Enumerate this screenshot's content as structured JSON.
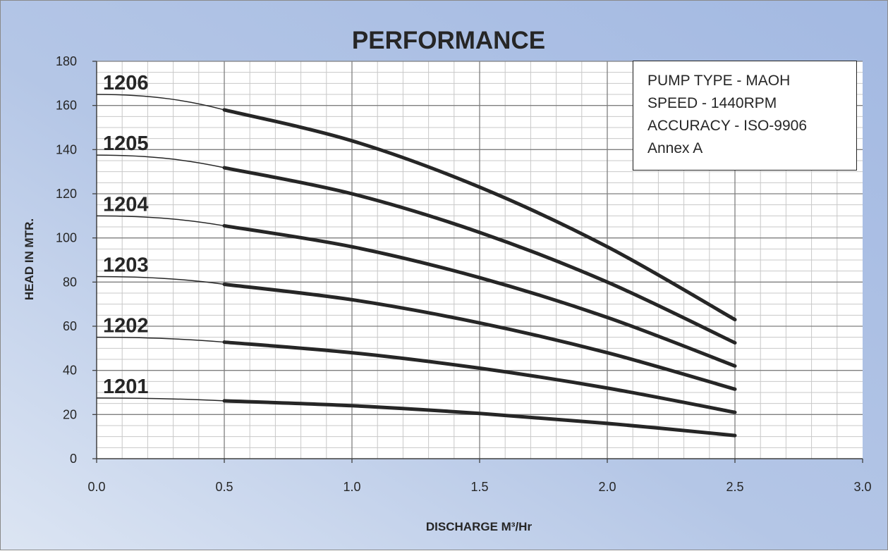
{
  "chart_data": {
    "type": "line",
    "title": "PERFORMANCE",
    "xlabel": "DISCHARGE M³/Hr",
    "ylabel": "HEAD IN MTR.",
    "xlim": [
      0,
      3
    ],
    "ylim": [
      0,
      180
    ],
    "x_ticks": [
      "0.0",
      "0.5",
      "1.0",
      "1.5",
      "2.0",
      "2.5",
      "3.0"
    ],
    "y_ticks": [
      "0",
      "20",
      "40",
      "60",
      "80",
      "100",
      "120",
      "140",
      "160",
      "180"
    ],
    "grid": true,
    "line_color": "#262626",
    "x": [
      0.5,
      1.0,
      1.5,
      2.0,
      2.5
    ],
    "series": [
      {
        "name": "1201",
        "shutoff": 27.5,
        "values": [
          26.2,
          24.0,
          20.5,
          16.0,
          10.5
        ]
      },
      {
        "name": "1202",
        "shutoff": 55.0,
        "values": [
          52.8,
          48.0,
          41.0,
          32.0,
          21.0
        ]
      },
      {
        "name": "1203",
        "shutoff": 82.5,
        "values": [
          79.0,
          72.0,
          61.5,
          48.0,
          31.5
        ]
      },
      {
        "name": "1204",
        "shutoff": 110.0,
        "values": [
          105.5,
          96.0,
          82.0,
          64.0,
          42.0
        ]
      },
      {
        "name": "1205",
        "shutoff": 137.5,
        "values": [
          131.8,
          120.0,
          102.5,
          80.0,
          52.5
        ]
      },
      {
        "name": "1206",
        "shutoff": 165.0,
        "values": [
          158.0,
          144.0,
          123.0,
          96.0,
          63.0
        ]
      }
    ]
  },
  "info_box": {
    "lines": [
      "PUMP TYPE - MAOH",
      "SPEED - 1440RPM",
      "ACCURACY - ISO-9906",
      "Annex A"
    ]
  }
}
